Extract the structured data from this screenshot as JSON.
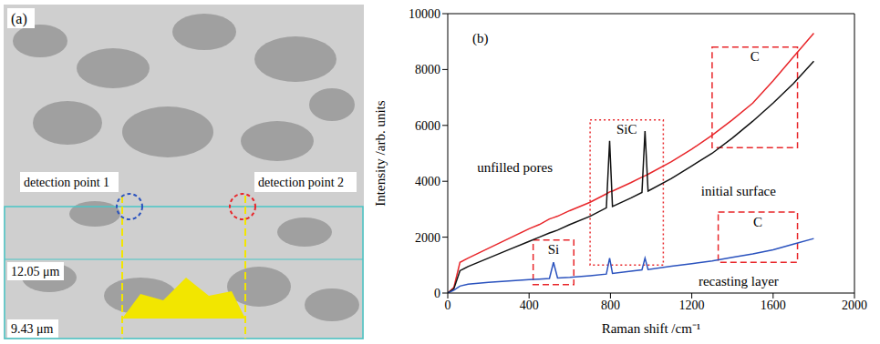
{
  "image_panel": {
    "label": "(a)",
    "annotations": [
      "detection point 1",
      "detection point 2"
    ],
    "scale_labels": [
      "12.05 μm",
      "9.43 μm"
    ]
  },
  "chart_data": {
    "type": "line",
    "panel_label": "(b)",
    "x_label": "Raman shift /cm⁻¹",
    "y_label": "Intensity /arb. units",
    "x": [
      0,
      30,
      60,
      100,
      200,
      300,
      400,
      450,
      500,
      520,
      540,
      600,
      700,
      780,
      796,
      810,
      900,
      955,
      970,
      985,
      1100,
      1200,
      1300,
      1400,
      1500,
      1600,
      1700,
      1800
    ],
    "series": [
      {
        "name": "unfilled pores",
        "color": "#e8262a",
        "values": [
          0,
          200,
          1100,
          1250,
          1600,
          1950,
          2300,
          2450,
          2650,
          2700,
          2750,
          2950,
          3250,
          3550,
          3620,
          3650,
          3950,
          4150,
          4200,
          4250,
          4700,
          5150,
          5650,
          6200,
          6800,
          7600,
          8450,
          9300
        ]
      },
      {
        "name": "initial surface",
        "color": "#111111",
        "values": [
          0,
          150,
          800,
          950,
          1250,
          1550,
          1850,
          2000,
          2150,
          2200,
          2250,
          2450,
          2750,
          3050,
          5450,
          3100,
          3400,
          3600,
          5800,
          3650,
          4100,
          4550,
          5000,
          5550,
          6150,
          6800,
          7500,
          8300
        ]
      },
      {
        "name": "recasting layer",
        "color": "#2a52be",
        "values": [
          0,
          100,
          250,
          320,
          380,
          430,
          480,
          500,
          520,
          1100,
          540,
          560,
          620,
          680,
          1250,
          700,
          780,
          830,
          1250,
          840,
          960,
          1050,
          1150,
          1280,
          1400,
          1550,
          1750,
          1950
        ]
      }
    ],
    "xlim": [
      0,
      2000
    ],
    "xticks": [
      0,
      400,
      800,
      1200,
      1600,
      2000
    ],
    "ylim": [
      0,
      10000
    ],
    "yticks": [
      0,
      2000,
      4000,
      6000,
      8000,
      10000
    ],
    "grid": false,
    "regions": [
      {
        "label": "C",
        "x": [
          1300,
          1720
        ],
        "y": [
          5200,
          8800
        ],
        "line_style": "dashed"
      },
      {
        "label": "SiC",
        "x": [
          700,
          1060
        ],
        "y": [
          1000,
          6200
        ],
        "line_style": "dotted"
      },
      {
        "label": "Si",
        "x": [
          420,
          620
        ],
        "y": [
          300,
          1900
        ],
        "line_style": "dashed"
      },
      {
        "label": "C",
        "x": [
          1330,
          1720
        ],
        "y": [
          1100,
          2900
        ],
        "line_style": "dashed"
      }
    ]
  }
}
